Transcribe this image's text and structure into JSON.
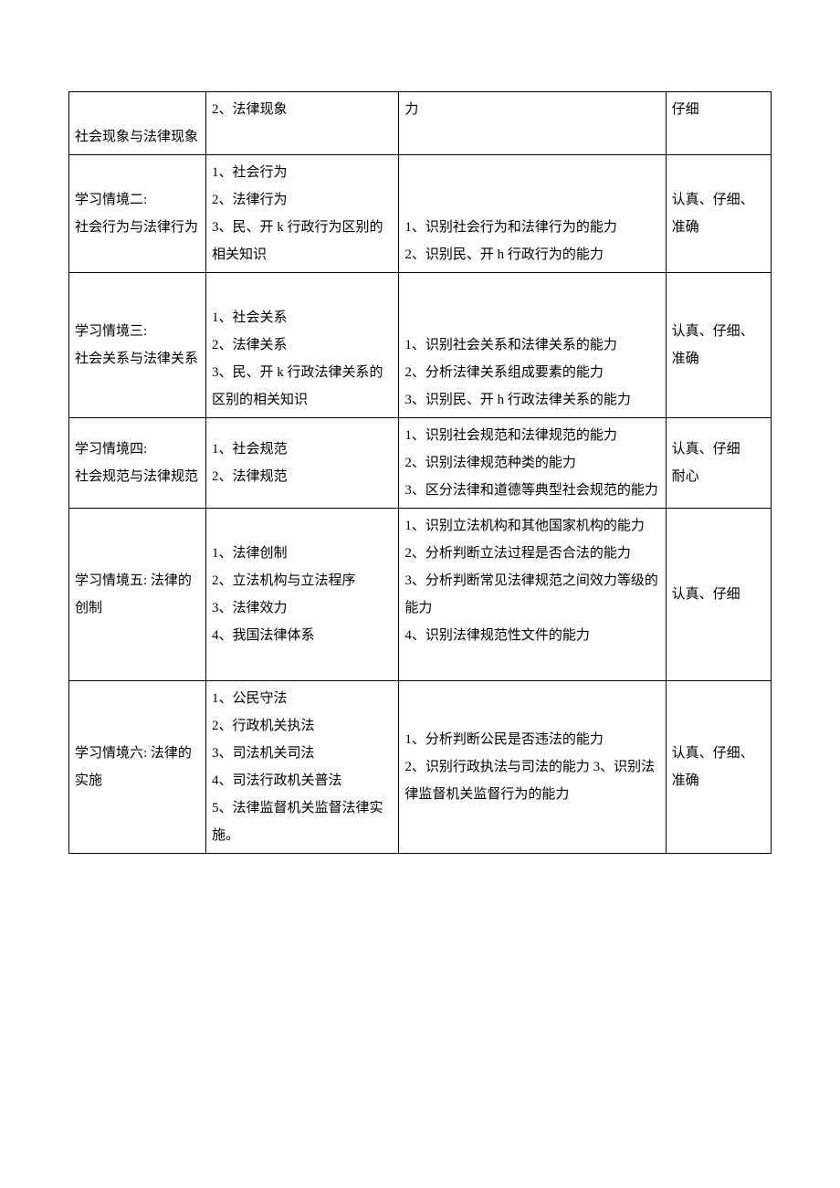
{
  "rows": [
    {
      "c1": "\n社会现象与法律现象",
      "c2": "2、法律现象",
      "c3": "力",
      "c4": "仔细"
    },
    {
      "c1": "学习情境二:\n社会行为与法律行为",
      "c2": "1、社会行为\n2、法律行为\n3、民、开 k 行政行为区别的相关知识",
      "c3": "\n1、识别社会行为和法律行为的能力\n2、识别民、开 h 行政行为的能力",
      "c4": "认真、仔细、准确"
    },
    {
      "c1": "学习情境三:\n社会关系与法律关系",
      "c2": "\n1、社会关系\n2、法律关系\n3、民、开 k 行政法律关系的区别的相关知识",
      "c3": "\n\n1、识别社会关系和法律关系的能力\n2、分析法律关系组成要素的能力\n3、识别民、开 h 行政法律关系的能力",
      "c4": "认真、仔细、准确"
    },
    {
      "c1": "学习情境四:\n社会规范与法律规范",
      "c2": "1、社会规范\n2、法律规范",
      "c3": "1、识别社会规范和法律规范的能力\n2、识别法律规范种类的能力\n3、区分法律和道德等典型社会规范的能力",
      "c4": "认真、仔细\n耐心"
    },
    {
      "c1": "学习情境五: 法律的创制",
      "c2": "1、法律创制\n2、立法机构与立法程序\n3、法律效力\n4、我国法律体系",
      "c3": "1、识别立法机构和其他国家机构的能力\n2、分析判断立法过程是否合法的能力\n3、分析判断常见法律规范之间效力等级的能力\n4、识别法律规范性文件的能力\n",
      "c4": "认真、仔细"
    },
    {
      "c1": "学习情境六: 法律的实施",
      "c2": "1、公民守法\n2、行政机关执法\n3、司法机关司法\n4、司法行政机关普法\n5、法律监督机关监督法律实施。",
      "c3": "1、分析判断公民是否违法的能力\n2、识别行政执法与司法的能力 3、识别法律监督机关监督行为的能力",
      "c4": "认真、仔细、准确"
    }
  ]
}
